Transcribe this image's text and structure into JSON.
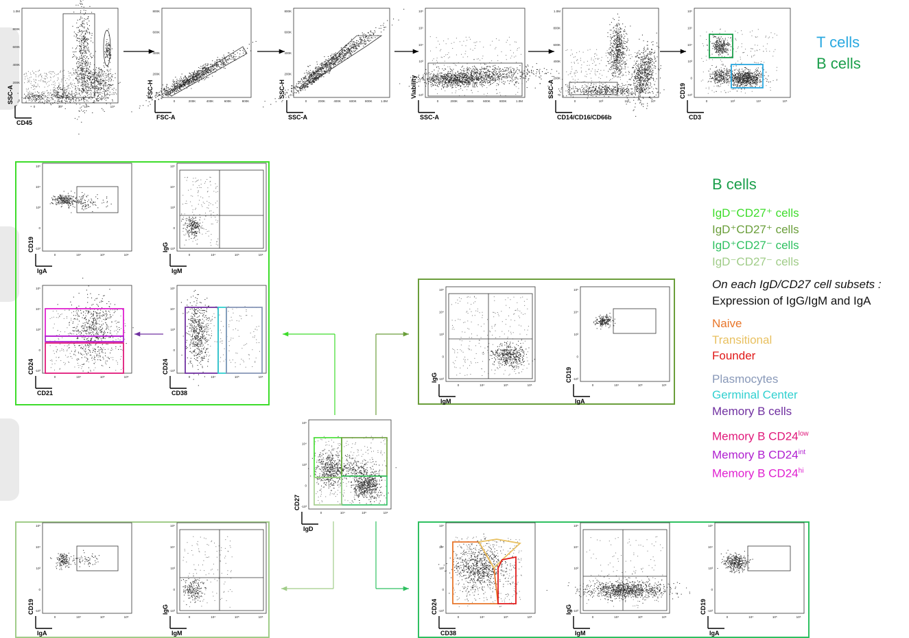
{
  "top_title": {
    "t_cells": "T cells",
    "b_cells": "B cells"
  },
  "legend": {
    "heading": "B cells",
    "subsets": [
      "IgD⁻CD27⁺ cells",
      "IgD⁺CD27⁺ cells",
      "IgD⁺CD27⁻ cells",
      "IgD⁻CD27⁻ cells"
    ],
    "note1": "On each IgD/CD27 cell subsets :",
    "note2": "Expression of IgG/IgM and IgA",
    "group_a": [
      "Naive",
      "Transitional",
      "Founder"
    ],
    "group_b": [
      "Plasmocytes",
      "Germinal Center",
      "Memory B cells"
    ],
    "cd24_prefix": "Memory B CD24",
    "cd24_levels": [
      "low",
      "int",
      "hi"
    ]
  },
  "colors": {
    "t_cells": "#29a8e0",
    "b_cells": "#1a9e4a",
    "subset_neg_pos": "#3ddc2a",
    "subset_pos_pos": "#6a9e3a",
    "subset_pos_neg": "#2ec060",
    "subset_neg_neg": "#a0cc88",
    "naive": "#e8762a",
    "transitional": "#e8c060",
    "founder": "#e01818",
    "plasmocytes": "#8898b8",
    "germinal_center": "#30d0d0",
    "memory_b": "#7030a0",
    "cd24_low": "#e0187a",
    "cd24_int": "#b020d0",
    "cd24_hi": "#e020d0"
  },
  "ticks": {
    "lin": [
      "1.0M",
      "800K",
      "600K",
      "400K",
      "200K",
      "0"
    ],
    "lin4": [
      "800K",
      "600K",
      "400K",
      "200K",
      "0"
    ],
    "lin_x": [
      "0",
      "200K",
      "400K",
      "600K",
      "800K"
    ],
    "lin_x_m": [
      "0",
      "200K",
      "400K",
      "600K",
      "800K",
      "1.0M"
    ],
    "log_y": [
      "10⁵",
      "10⁴",
      "10³",
      "0",
      "-10³"
    ],
    "log_y6": [
      "10⁶",
      "10⁵",
      "10⁴",
      "10³",
      "0",
      "-10³"
    ],
    "log_x": [
      "0",
      "10⁴",
      "10⁵",
      "10⁶"
    ],
    "log_x2": [
      "0",
      "10³",
      "10⁴",
      "10⁵"
    ]
  },
  "plots": [
    {
      "id": "p1",
      "x": "CD45",
      "y": "SSC-A"
    },
    {
      "id": "p2",
      "x": "FSC-A",
      "y": "FSC-H"
    },
    {
      "id": "p3",
      "x": "SSC-A",
      "y": "SSC-H"
    },
    {
      "id": "p4",
      "x": "SSC-A",
      "y": "Viability"
    },
    {
      "id": "p5",
      "x": "CD14/CD16/CD66b",
      "y": "SSC-A"
    },
    {
      "id": "p6",
      "x": "CD3",
      "y": "CD19"
    },
    {
      "id": "g1",
      "x": "IgA",
      "y": "CD19"
    },
    {
      "id": "g2",
      "x": "IgM",
      "y": "IgG"
    },
    {
      "id": "g3",
      "x": "CD21",
      "y": "CD24"
    },
    {
      "id": "g4",
      "x": "CD38",
      "y": "CD24"
    },
    {
      "id": "c",
      "x": "IgD",
      "y": "CD27"
    },
    {
      "id": "r1",
      "x": "IgM",
      "y": "IgG"
    },
    {
      "id": "r2",
      "x": "IgA",
      "y": "CD19"
    },
    {
      "id": "l1",
      "x": "IgA",
      "y": "CD19"
    },
    {
      "id": "l2",
      "x": "IgM",
      "y": "IgG"
    },
    {
      "id": "b1",
      "x": "CD38",
      "y": "CD24"
    },
    {
      "id": "b2",
      "x": "IgM",
      "y": "IgG"
    },
    {
      "id": "b3",
      "x": "IgA",
      "y": "CD19"
    }
  ]
}
